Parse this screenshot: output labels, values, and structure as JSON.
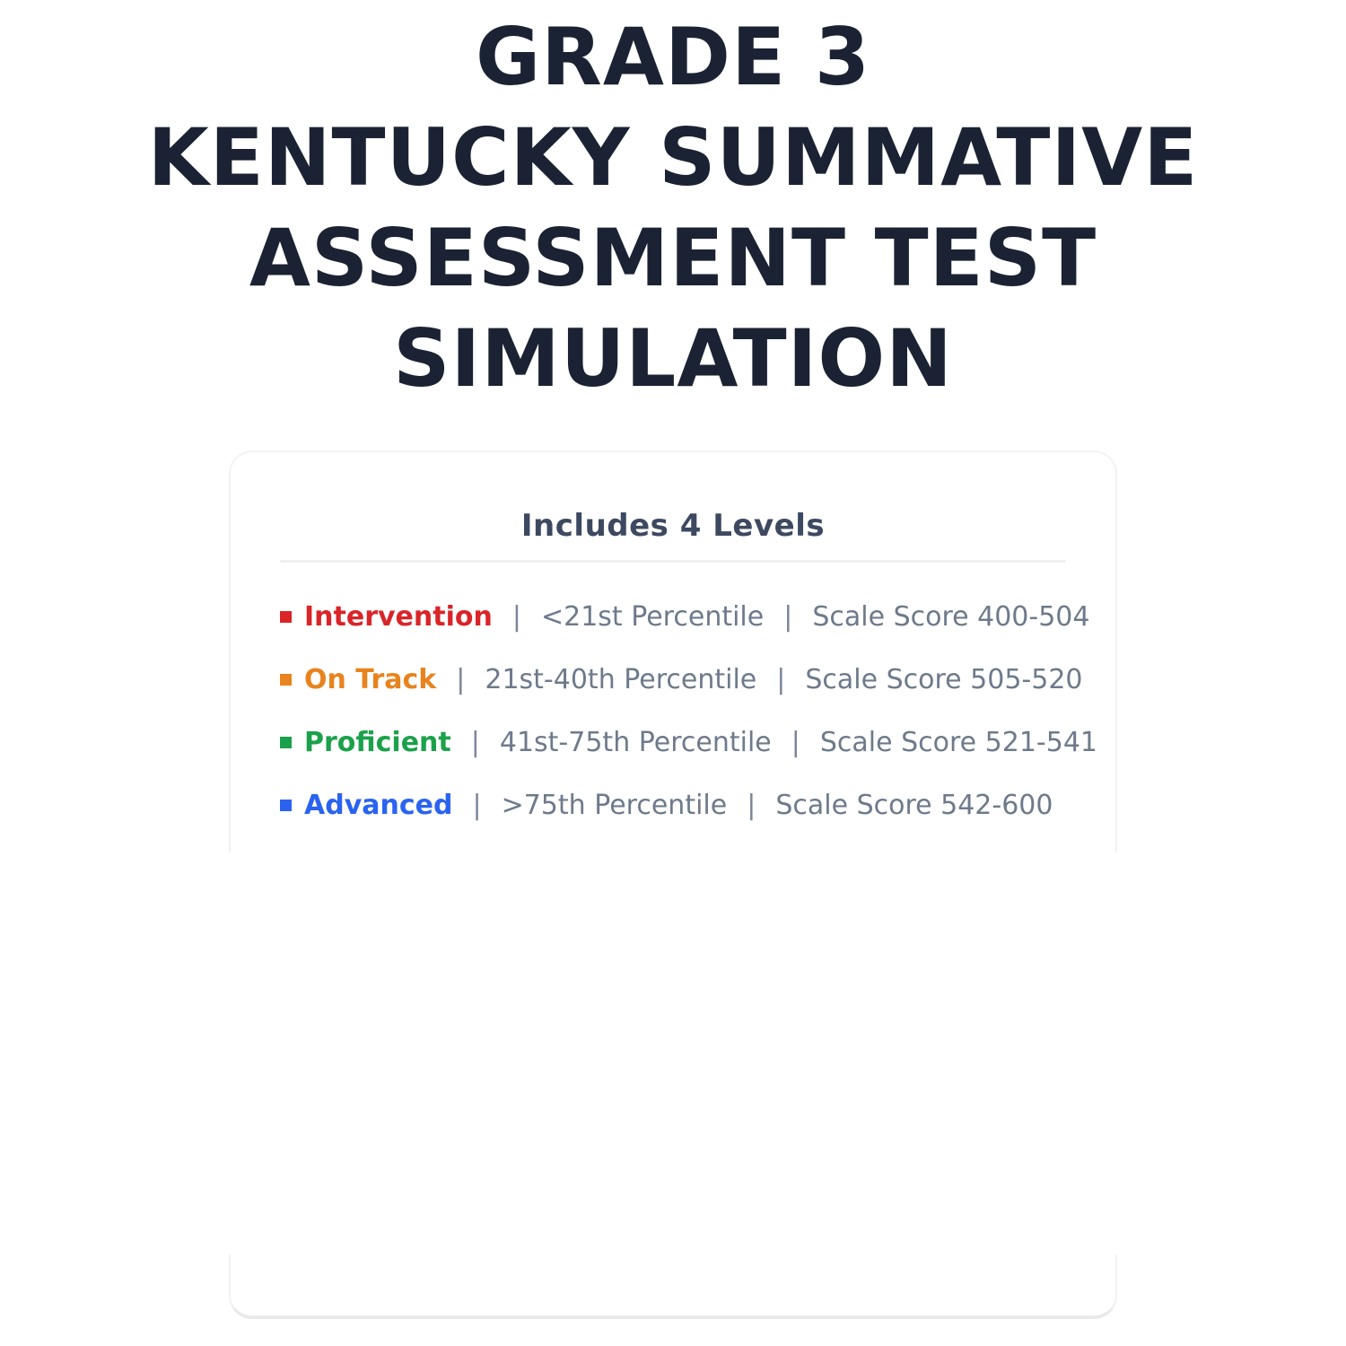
{
  "header": {
    "title_lines": [
      "GRADE 3",
      "KENTUCKY SUMMATIVE",
      "ASSESSMENT TEST",
      "SIMULATION"
    ]
  },
  "card": {
    "heading": "Includes 4 Levels",
    "separator": "|",
    "levels": [
      {
        "label": "Intervention",
        "color": "#da2428",
        "percentile": "<21st Percentile",
        "scale_score": "Scale Score 400-504"
      },
      {
        "label": "On Track",
        "color": "#e8831d",
        "percentile": "21st-40th Percentile",
        "scale_score": "Scale Score 505-520"
      },
      {
        "label": "Proficient",
        "color": "#1ba14b",
        "percentile": "41st-75th Percentile",
        "scale_score": "Scale Score 521-541"
      },
      {
        "label": "Advanced",
        "color": "#2a63f0",
        "percentile": ">75th Percentile",
        "scale_score": "Scale Score 542-600"
      }
    ]
  },
  "colors": {
    "title_text": "#1b2233",
    "card_heading_text": "#3d4961",
    "body_text": "#6e7a8b",
    "divider": "#f0f0f0",
    "card_border": "#f2f2f2",
    "background": "#ffffff"
  }
}
